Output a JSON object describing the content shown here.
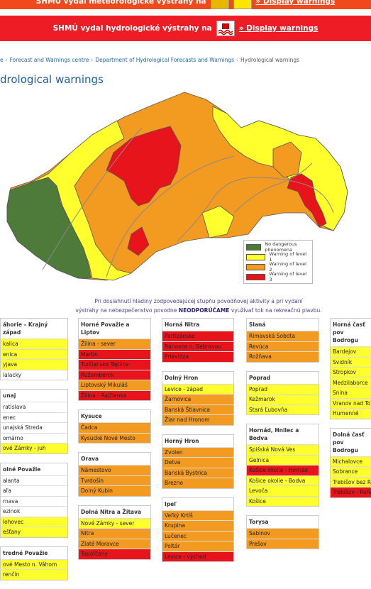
{
  "top_banner": {
    "text": "SHMÚ vydal meteorologické výstrahy na",
    "link": "» Display warnings"
  },
  "alert_banner": {
    "text": "SHMÚ vydal hydrologické výstrahy na",
    "link": "» Display warnings"
  },
  "breadcrumb": {
    "separator": "›",
    "items": [
      "e",
      "Forecast and Warnings centre",
      "Department of Hydrological Forecasts and Warnings",
      "Hydrological warnings"
    ]
  },
  "page_title": "drological warnings",
  "legend": [
    {
      "label": "No dangerous phenomena",
      "color": "#4e7a3a"
    },
    {
      "label": "Warning of level 1",
      "color": "#ffff2e"
    },
    {
      "label": "Warning of level 2",
      "color": "#f39a21"
    },
    {
      "label": "Warning of level 3",
      "color": "#e8141b"
    }
  ],
  "notice": {
    "line1": "Pri dosiahnutí hladiny zodpovedajúcej stupňu povodňovej aktivity a pri vydaní",
    "line2_before": "výstrahy na nebezpečenstvo povodne ",
    "line2_bold": "NEODPORÚČAME",
    "line2_after": " využívať tok na rekreačnú plavbu."
  },
  "columns": [
    [
      {
        "name": "áhorie – Krajný západ",
        "districts": [
          {
            "name": "kalica",
            "color": "#ffff2e"
          },
          {
            "name": "enica",
            "color": "#ffff2e"
          },
          {
            "name": "yjava",
            "color": "#ffff2e"
          },
          {
            "name": "lalacky",
            "color": "#ffffff"
          }
        ]
      },
      {
        "name": "unaj",
        "districts": [
          {
            "name": "ratislava",
            "color": "#ffffff"
          },
          {
            "name": "enec",
            "color": "#ffffff"
          },
          {
            "name": "unajská Streda",
            "color": "#ffffff"
          },
          {
            "name": "omárno",
            "color": "#ffffff"
          },
          {
            "name": "ové Zámky - juh",
            "color": "#ffff2e"
          }
        ]
      },
      {
        "name": "olné Považie",
        "districts": [
          {
            "name": "alanta",
            "color": "#ffffff"
          },
          {
            "name": "aľa",
            "color": "#ffffff"
          },
          {
            "name": "rnava",
            "color": "#ffffff"
          },
          {
            "name": "ezinok",
            "color": "#ffffff"
          },
          {
            "name": "lohovec",
            "color": "#ffff2e"
          },
          {
            "name": "ešťany",
            "color": "#ffff2e"
          }
        ]
      },
      {
        "name": "tredné Považie",
        "districts": [
          {
            "name": "ové Mesto n. Váhom",
            "color": "#ffff2e"
          },
          {
            "name": "renčín",
            "color": "#ffff2e"
          }
        ]
      }
    ],
    [
      {
        "name": "Horné Považie a Liptov",
        "districts": [
          {
            "name": "Žilina - sever",
            "color": "#f39a21"
          },
          {
            "name": "Martin",
            "color": "#e8141b"
          },
          {
            "name": "Turčianske Teplice",
            "color": "#e8141b"
          },
          {
            "name": "Ružomberok",
            "color": "#e8141b"
          },
          {
            "name": "Liptovský Mikuláš",
            "color": "#f39a21"
          },
          {
            "name": "Žilina - Rajčianka",
            "color": "#e8141b"
          }
        ]
      },
      {
        "name": "Kysuce",
        "districts": [
          {
            "name": "Čadca",
            "color": "#f39a21"
          },
          {
            "name": "Kysucké Nové Mesto",
            "color": "#f39a21"
          }
        ]
      },
      {
        "name": "Orava",
        "districts": [
          {
            "name": "Námestovo",
            "color": "#f39a21"
          },
          {
            "name": "Tvrdošín",
            "color": "#f39a21"
          },
          {
            "name": "Dolný Kubín",
            "color": "#f39a21"
          }
        ]
      },
      {
        "name": "Dolná Nitra a Žitava",
        "districts": [
          {
            "name": "Nové Zámky - sever",
            "color": "#ffff2e"
          },
          {
            "name": "Nitra",
            "color": "#f39a21"
          },
          {
            "name": "Zlaté Moravce",
            "color": "#f39a21"
          },
          {
            "name": "Topoľčany",
            "color": "#e8141b"
          }
        ]
      }
    ],
    [
      {
        "name": "Horná Nitra",
        "districts": [
          {
            "name": "Partizánske",
            "color": "#e8141b"
          },
          {
            "name": "Bánovce n. Bebravou",
            "color": "#e8141b"
          },
          {
            "name": "Prievidza",
            "color": "#e8141b"
          }
        ]
      },
      {
        "name": "Dolný Hron",
        "districts": [
          {
            "name": "Levice - západ",
            "color": "#ffff2e"
          },
          {
            "name": "Žarnovica",
            "color": "#f39a21"
          },
          {
            "name": "Banská Štiavnica",
            "color": "#f39a21"
          },
          {
            "name": "Žiar nad Hronom",
            "color": "#f39a21"
          }
        ]
      },
      {
        "name": "Horný Hron",
        "districts": [
          {
            "name": "Zvolen",
            "color": "#f39a21"
          },
          {
            "name": "Detva",
            "color": "#f39a21"
          },
          {
            "name": "Banská Bystrica",
            "color": "#f39a21"
          },
          {
            "name": "Brezno",
            "color": "#f39a21"
          }
        ]
      },
      {
        "name": "Ipeľ",
        "districts": [
          {
            "name": "Veľký Krtíš",
            "color": "#f39a21"
          },
          {
            "name": "Krupina",
            "color": "#f39a21"
          },
          {
            "name": "Lučenec",
            "color": "#f39a21"
          },
          {
            "name": "Poltár",
            "color": "#f39a21"
          },
          {
            "name": "Levice - východ",
            "color": "#e8141b"
          }
        ]
      }
    ],
    [
      {
        "name": "Slaná",
        "districts": [
          {
            "name": "Rimavská Sobota",
            "color": "#f39a21"
          },
          {
            "name": "Revúca",
            "color": "#f39a21"
          },
          {
            "name": "Rožňava",
            "color": "#f39a21"
          }
        ]
      },
      {
        "name": "Poprad",
        "districts": [
          {
            "name": "Poprad",
            "color": "#ffff2e"
          },
          {
            "name": "Kežmarok",
            "color": "#ffff2e"
          },
          {
            "name": "Stará Ľubovňa",
            "color": "#ffff2e"
          }
        ]
      },
      {
        "name": "Hornád, Hnilec a Bodva",
        "districts": [
          {
            "name": "Spišská Nová Ves",
            "color": "#ffff2e"
          },
          {
            "name": "Gelnica",
            "color": "#ffff2e"
          },
          {
            "name": "Košice okolie - Hornád",
            "color": "#e8141b"
          },
          {
            "name": "Košice okolie - Bodva",
            "color": "#ffff2e"
          },
          {
            "name": "Levoča",
            "color": "#ffff2e"
          },
          {
            "name": "Košice",
            "color": "#ffff2e"
          }
        ]
      },
      {
        "name": "Torysa",
        "districts": [
          {
            "name": "Sabinov",
            "color": "#f39a21"
          },
          {
            "name": "Prešov",
            "color": "#f39a21"
          }
        ]
      }
    ],
    [
      {
        "name": [
          "Horná časť pov",
          "Bodrogu"
        ],
        "districts": [
          {
            "name": "Bardejov",
            "color": "#ffff2e"
          },
          {
            "name": "Svidník",
            "color": "#ffff2e"
          },
          {
            "name": "Stropkov",
            "color": "#ffff2e"
          },
          {
            "name": "Medzilaborce",
            "color": "#ffff2e"
          },
          {
            "name": "Snina",
            "color": "#ffff2e"
          },
          {
            "name": "Vranov nad Top",
            "color": "#ffff2e"
          },
          {
            "name": "Humenné",
            "color": "#ffff2e"
          }
        ]
      },
      {
        "name": [
          "Dolná časť pov",
          "Bodrogu"
        ],
        "districts": [
          {
            "name": "Michalovce",
            "color": "#ffff2e"
          },
          {
            "name": "Sobrance",
            "color": "#ffff2e"
          },
          {
            "name": "Trebišov bez Ro",
            "color": "#ffff2e"
          },
          {
            "name": "Trebišov - Roňa",
            "color": "#e8141b"
          }
        ]
      }
    ]
  ]
}
